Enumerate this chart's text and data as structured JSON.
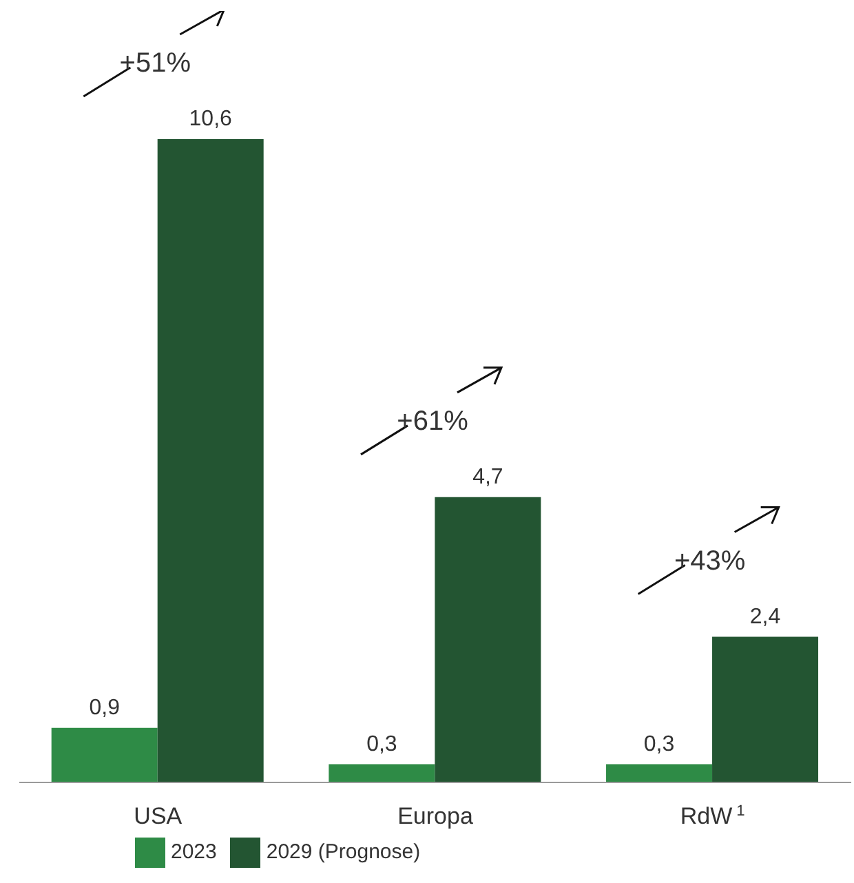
{
  "chart_data": {
    "type": "bar",
    "categories": [
      "USA",
      "Europa",
      "RdW$^{1}$"
    ],
    "series": [
      {
        "name": "2023",
        "color": "#2e8b46",
        "values": [
          0.9,
          0.3,
          0.3
        ],
        "value_labels": [
          "0,9",
          "0,3",
          "0,3"
        ]
      },
      {
        "name": "2029 (Prognose)",
        "color": "#235532",
        "values": [
          10.6,
          4.7,
          2.4
        ],
        "value_labels": [
          "10,6",
          "4,7",
          "2,4"
        ]
      }
    ],
    "tick_labels": "x",
    "legend": "bottom",
    "annotations": [
      "+51%",
      "+61%",
      "+43%"
    ]
  }
}
